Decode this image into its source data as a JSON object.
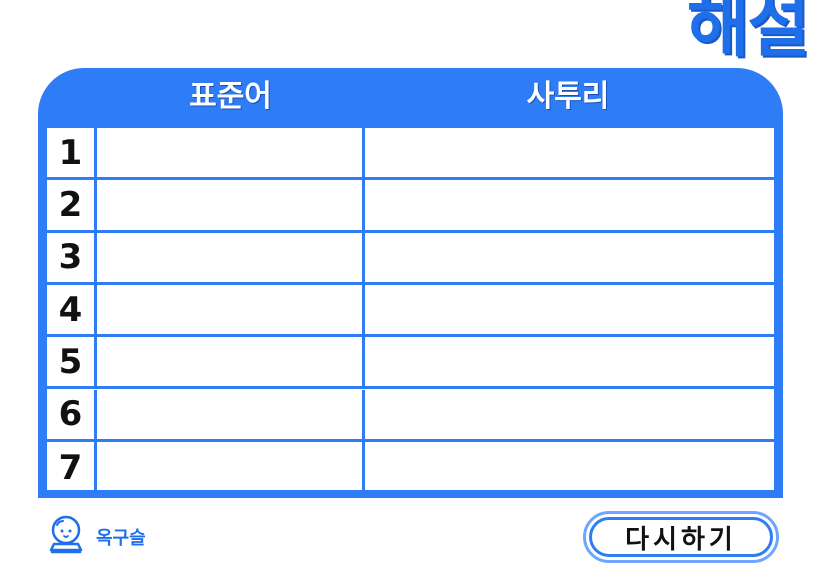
{
  "title": "해설",
  "table": {
    "col_standard": "표준어",
    "col_dialect": "사투리",
    "rows": [
      {
        "num": "1",
        "standard": "",
        "dialect": ""
      },
      {
        "num": "2",
        "standard": "",
        "dialect": ""
      },
      {
        "num": "3",
        "standard": "",
        "dialect": ""
      },
      {
        "num": "4",
        "standard": "",
        "dialect": ""
      },
      {
        "num": "5",
        "standard": "",
        "dialect": ""
      },
      {
        "num": "6",
        "standard": "",
        "dialect": ""
      },
      {
        "num": "7",
        "standard": "",
        "dialect": ""
      }
    ]
  },
  "brand": {
    "name": "옥구슬",
    "icon": "crystal-ball-icon"
  },
  "retry_button": {
    "label": "다시하기"
  },
  "colors": {
    "accent": "#2f7df6",
    "title": "#1f6feb",
    "button_outer": "#6ea6ff"
  }
}
